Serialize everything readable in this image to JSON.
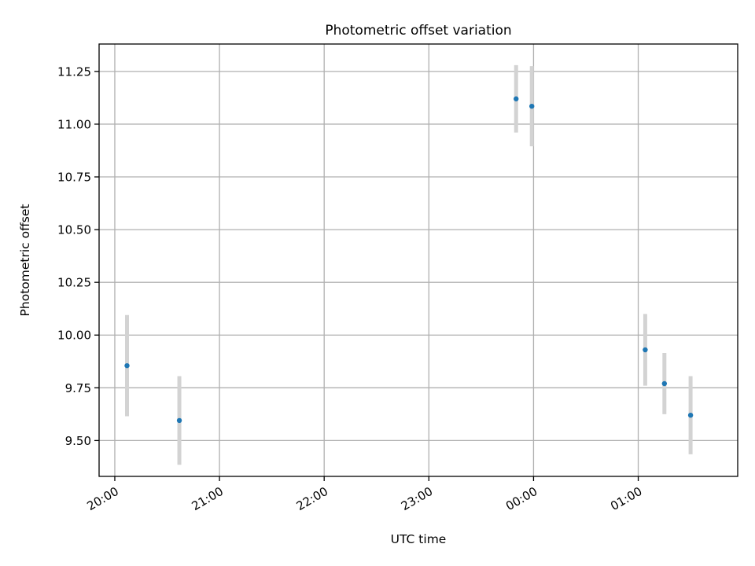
{
  "chart_data": {
    "type": "scatter",
    "title": "Photometric offset variation",
    "xlabel": "UTC time",
    "ylabel": "Photometric offset",
    "xlim": [
      "19:51",
      "01:57"
    ],
    "ylim": [
      9.33,
      11.38
    ],
    "x_ticks": [
      "20:00",
      "21:00",
      "22:00",
      "23:00",
      "00:00",
      "01:00"
    ],
    "y_ticks": [
      "9.50",
      "9.75",
      "10.00",
      "10.25",
      "10.50",
      "10.75",
      "11.00",
      "11.25"
    ],
    "grid": true,
    "legend": "none",
    "marker_color": "#1f77b4",
    "errorbar_color": "#d3d3d3",
    "points": [
      {
        "x": "20:07",
        "y": 9.855,
        "yerr": 0.24
      },
      {
        "x": "20:37",
        "y": 9.595,
        "yerr": 0.21
      },
      {
        "x": "23:50",
        "y": 11.12,
        "yerr": 0.16
      },
      {
        "x": "23:59",
        "y": 11.085,
        "yerr": 0.19
      },
      {
        "x": "01:04",
        "y": 9.93,
        "yerr": 0.17
      },
      {
        "x": "01:15",
        "y": 9.77,
        "yerr": 0.145
      },
      {
        "x": "01:30",
        "y": 9.62,
        "yerr": 0.185
      }
    ]
  }
}
